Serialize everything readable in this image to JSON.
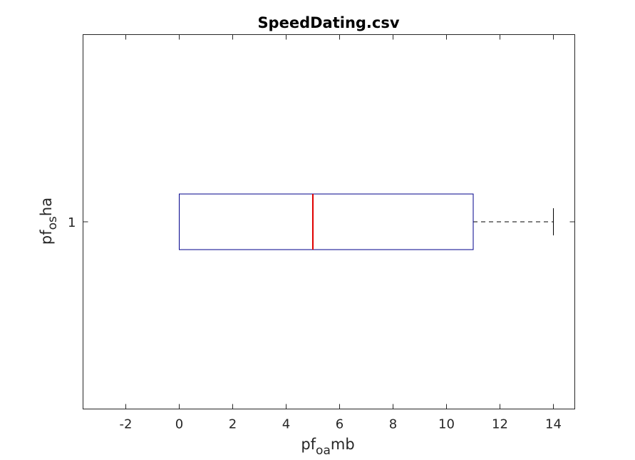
{
  "chart_data": {
    "type": "boxplot",
    "orientation": "horizontal",
    "title": "SpeedDating.csv",
    "xlabel": {
      "base1": "pf",
      "sub": "oa",
      "base2": "mb"
    },
    "ylabel": {
      "base1": "pf",
      "sub": "os",
      "base2": "ha"
    },
    "xlim": [
      -3.6,
      14.8
    ],
    "xticks": [
      -2,
      0,
      2,
      4,
      6,
      8,
      10,
      12,
      14
    ],
    "ytick_labels": [
      "1"
    ],
    "boxes": [
      {
        "category": "1",
        "whisker_low": 0,
        "q1": 0,
        "median": 5,
        "q3": 11,
        "whisker_high": 14,
        "outliers": []
      }
    ],
    "grid": false,
    "colors": {
      "box": "#00008b",
      "median": "#e00000",
      "whisker": "#000000",
      "axes": "#262626"
    }
  }
}
